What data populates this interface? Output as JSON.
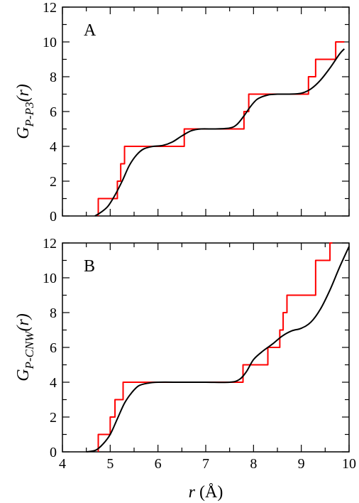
{
  "chart_data": [
    {
      "type": "line",
      "panel_label": "A",
      "ylabel": {
        "main": "G",
        "sub": "P-P3",
        "args": "(r)"
      },
      "xlim": [
        4,
        10
      ],
      "ylim": [
        0,
        12
      ],
      "x_ticks": [
        4,
        5,
        6,
        7,
        8,
        9,
        10
      ],
      "y_ticks": [
        0,
        2,
        4,
        6,
        8,
        10,
        12
      ],
      "grid": false,
      "series": [
        {
          "color": "#ff0000",
          "kind": "step",
          "x": [
            4.75,
            4.75,
            5.15,
            5.15,
            5.22,
            5.22,
            5.3,
            5.3,
            6.55,
            6.55,
            7.8,
            7.8,
            7.9,
            7.9,
            9.15,
            9.15,
            9.3,
            9.3,
            9.45,
            9.45,
            9.72,
            9.72,
            9.9
          ],
          "y": [
            0,
            1,
            1,
            2,
            2,
            3,
            3,
            4,
            4,
            5,
            5,
            6,
            6,
            7,
            7,
            8,
            8,
            9,
            9,
            9,
            9,
            10,
            10
          ]
        },
        {
          "color": "#000000",
          "kind": "smooth",
          "x": [
            4.68,
            4.8,
            4.95,
            5.1,
            5.25,
            5.4,
            5.55,
            5.7,
            5.9,
            6.1,
            6.3,
            6.5,
            6.7,
            6.9,
            7.2,
            7.5,
            7.65,
            7.8,
            7.9,
            8.0,
            8.1,
            8.3,
            8.5,
            8.75,
            9.0,
            9.2,
            9.4,
            9.6,
            9.8,
            9.9
          ],
          "y": [
            0,
            0.2,
            0.55,
            1.2,
            2.0,
            2.9,
            3.5,
            3.85,
            4.0,
            4.05,
            4.25,
            4.6,
            4.9,
            5.0,
            5.0,
            5.05,
            5.25,
            5.75,
            6.15,
            6.5,
            6.75,
            6.95,
            7.0,
            7.0,
            7.05,
            7.3,
            7.8,
            8.5,
            9.3,
            9.6
          ]
        }
      ]
    },
    {
      "type": "line",
      "panel_label": "B",
      "ylabel": {
        "main": "G",
        "sub": "P-CNW",
        "args": "(r)"
      },
      "xlabel": {
        "var": "r",
        "unit": " (Å)"
      },
      "xlim": [
        4,
        10
      ],
      "ylim": [
        0,
        12
      ],
      "x_ticks": [
        4,
        5,
        6,
        7,
        8,
        9,
        10
      ],
      "y_ticks": [
        0,
        2,
        4,
        6,
        8,
        10,
        12
      ],
      "grid": false,
      "series": [
        {
          "color": "#ff0000",
          "kind": "step",
          "x": [
            4.75,
            4.75,
            5.0,
            5.0,
            5.05,
            5.05,
            5.1,
            5.1,
            5.27,
            5.27,
            7.78,
            7.78,
            8.3,
            8.3,
            8.55,
            8.55,
            8.62,
            8.62,
            8.7,
            8.7,
            9.3,
            9.3,
            9.6,
            9.6,
            9.65
          ],
          "y": [
            0,
            1,
            1,
            2,
            2,
            2,
            2,
            3,
            3,
            4,
            4,
            5,
            5,
            6,
            6,
            7,
            7,
            8,
            8,
            9,
            9,
            11,
            11,
            12,
            12
          ]
        },
        {
          "color": "#000000",
          "kind": "smooth",
          "x": [
            4.5,
            4.7,
            4.85,
            5.0,
            5.15,
            5.3,
            5.45,
            5.6,
            5.8,
            6.0,
            6.5,
            7.0,
            7.5,
            7.7,
            7.85,
            8.0,
            8.2,
            8.4,
            8.6,
            8.8,
            9.0,
            9.2,
            9.4,
            9.6,
            9.8,
            10.0
          ],
          "y": [
            0,
            0.1,
            0.45,
            1.0,
            1.9,
            2.8,
            3.4,
            3.8,
            3.95,
            4.0,
            4.0,
            4.0,
            4.0,
            4.15,
            4.6,
            5.3,
            5.8,
            6.2,
            6.65,
            6.95,
            7.1,
            7.45,
            8.2,
            9.3,
            10.6,
            11.8
          ]
        }
      ]
    }
  ]
}
